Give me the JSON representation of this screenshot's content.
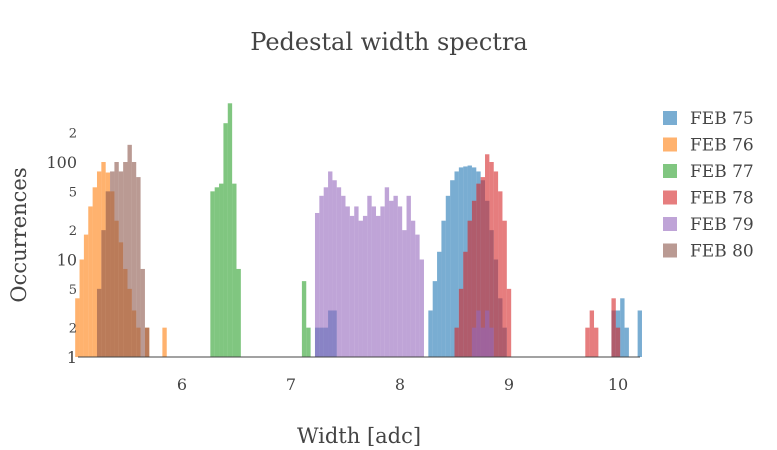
{
  "chart_data": {
    "type": "histogram",
    "title": "Pedestal width spectra",
    "xlabel": "Width [adc]",
    "ylabel": "Occurrences",
    "xlim": [
      5.0,
      10.2
    ],
    "ylim": [
      1,
      400
    ],
    "y_scale": "log",
    "x_ticks": [
      "6",
      "7",
      "8",
      "9",
      "10"
    ],
    "y_major_ticks": [
      {
        "label": "1",
        "value": 1
      },
      {
        "label": "10",
        "value": 10
      },
      {
        "label": "100",
        "value": 100
      }
    ],
    "y_minor_ticks": [
      {
        "label": "2",
        "value": 2
      },
      {
        "label": "5",
        "value": 5
      },
      {
        "label": "2",
        "value": 20
      },
      {
        "label": "5",
        "value": 50
      },
      {
        "label": "2",
        "value": 200
      }
    ],
    "bin_width": 0.04,
    "legend_position": "right",
    "barmode": "overlay",
    "opacity": 0.6,
    "series": [
      {
        "name": "FEB 75",
        "color": "#1f77b4",
        "start": 7.22,
        "counts": [
          2,
          2,
          2,
          3,
          3,
          0,
          0,
          0,
          0,
          0,
          0,
          0,
          0,
          0,
          0,
          0,
          0,
          0,
          0,
          0,
          0,
          0,
          0,
          0,
          1,
          1,
          3,
          6,
          12,
          25,
          45,
          65,
          80,
          88,
          90,
          92,
          88,
          80,
          65,
          40,
          20,
          10,
          4,
          2,
          1,
          1,
          0,
          0,
          0,
          0,
          0,
          0,
          0,
          0,
          0,
          0,
          0,
          0,
          0,
          0,
          0,
          0,
          0,
          0,
          0,
          0,
          0,
          0,
          3,
          3,
          4,
          2,
          0,
          0,
          3
        ]
      },
      {
        "name": "FEB 76",
        "color": "#ff7f0e",
        "start": 5.02,
        "counts": [
          4,
          10,
          18,
          35,
          55,
          80,
          100,
          78,
          50,
          25,
          15,
          8,
          5,
          3,
          2,
          1,
          2,
          0,
          1,
          0,
          2
        ]
      },
      {
        "name": "FEB 77",
        "color": "#2ca02c",
        "start": 6.22,
        "counts": [
          1,
          50,
          55,
          60,
          250,
          400,
          60,
          8,
          0,
          0,
          0,
          0,
          0,
          0,
          0,
          0,
          0,
          0,
          0,
          0,
          0,
          0,
          6,
          2
        ]
      },
      {
        "name": "FEB 78",
        "color": "#d62728",
        "start": 8.46,
        "counts": [
          1,
          2,
          5,
          12,
          25,
          40,
          60,
          70,
          120,
          100,
          80,
          50,
          25,
          5,
          0,
          0,
          0,
          0,
          0,
          0,
          0,
          0,
          0,
          0,
          0,
          0,
          0,
          0,
          0,
          0,
          1,
          2,
          3,
          2,
          1,
          0,
          1,
          4,
          2
        ]
      },
      {
        "name": "FEB 79",
        "color": "#9467bd",
        "start": 7.22,
        "counts": [
          30,
          45,
          55,
          80,
          65,
          55,
          45,
          35,
          28,
          35,
          25,
          28,
          45,
          35,
          28,
          35,
          55,
          40,
          45,
          35,
          20,
          45,
          25,
          18,
          10,
          0,
          0,
          0,
          0,
          0,
          0,
          0,
          0,
          0,
          0,
          0,
          2,
          3,
          2,
          3,
          2
        ]
      },
      {
        "name": "FEB 80",
        "color": "#8c564b",
        "start": 5.18,
        "counts": [
          1,
          5,
          20,
          50,
          80,
          100,
          80,
          100,
          150,
          100,
          70,
          8,
          2,
          1
        ]
      }
    ]
  }
}
